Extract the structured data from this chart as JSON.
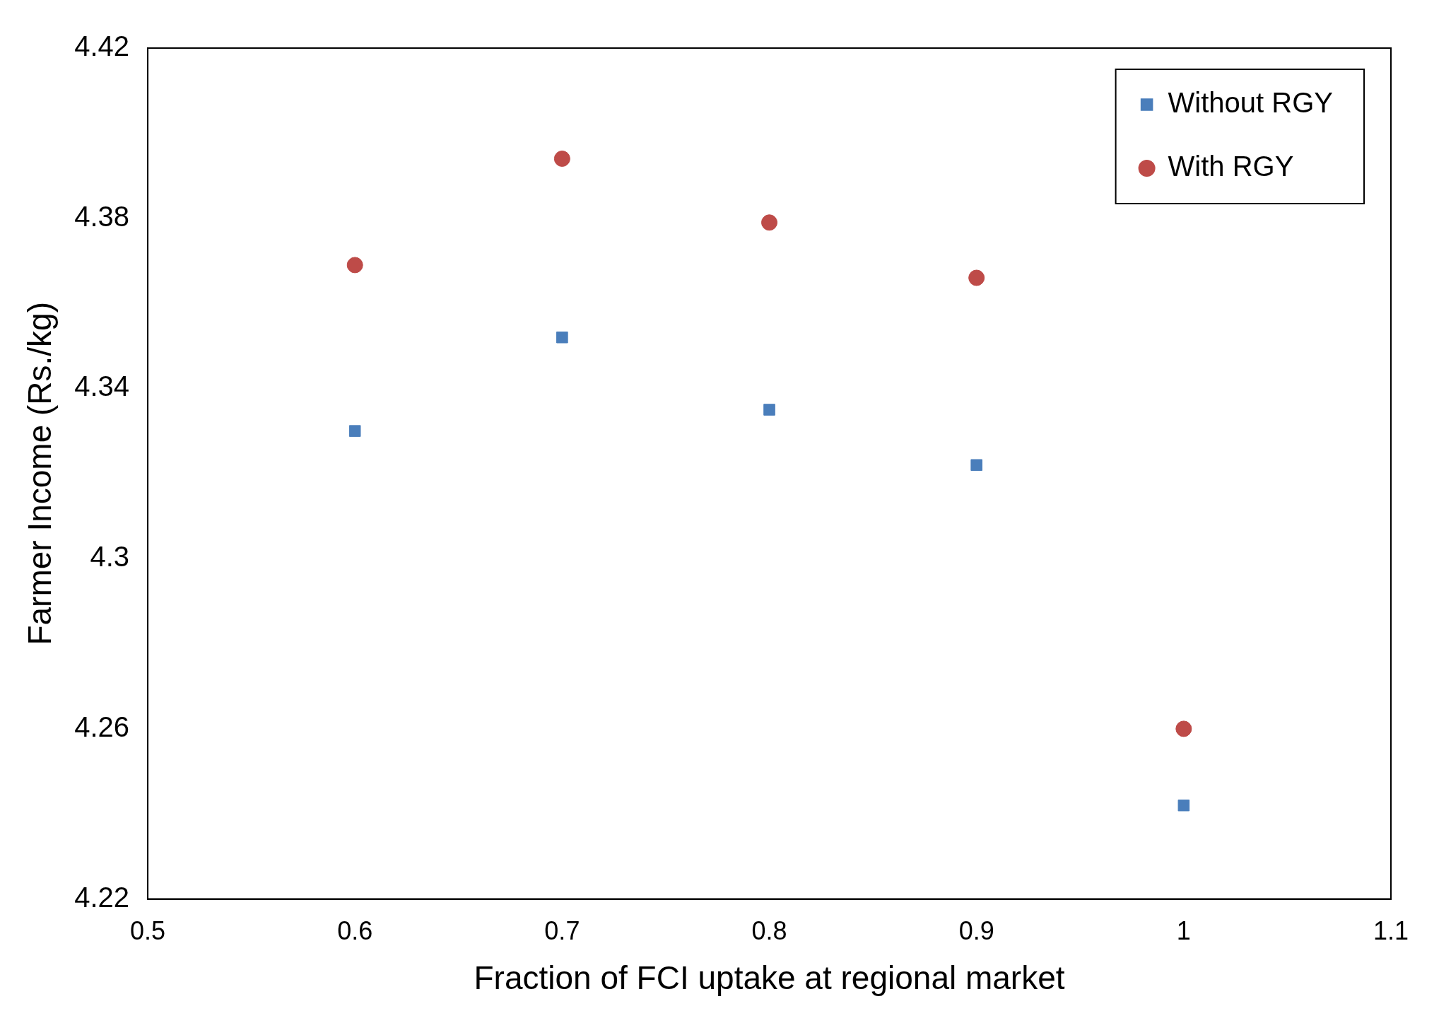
{
  "chart_data": {
    "type": "scatter",
    "xlabel": "Fraction of FCI uptake at regional market",
    "ylabel": "Farmer Income (Rs./kg)",
    "x": [
      0.6,
      0.7,
      0.8,
      0.9,
      1.0
    ],
    "series": [
      {
        "name": "Without RGY",
        "color": "#4a7ebb",
        "marker": "square",
        "values": [
          4.33,
          4.352,
          4.335,
          4.322,
          4.242
        ]
      },
      {
        "name": "With RGY",
        "color": "#be4b48",
        "marker": "circle",
        "values": [
          4.369,
          4.394,
          4.379,
          4.366,
          4.26
        ]
      }
    ],
    "xlim": [
      0.5,
      1.1
    ],
    "xticks": [
      0.5,
      0.6,
      0.7,
      0.8,
      0.9,
      1,
      1.1
    ],
    "ylim": [
      4.22,
      4.42
    ],
    "yticks": [
      4.22,
      4.26,
      4.3,
      4.34,
      4.38,
      4.42
    ],
    "grid": false,
    "legend": "top right"
  }
}
